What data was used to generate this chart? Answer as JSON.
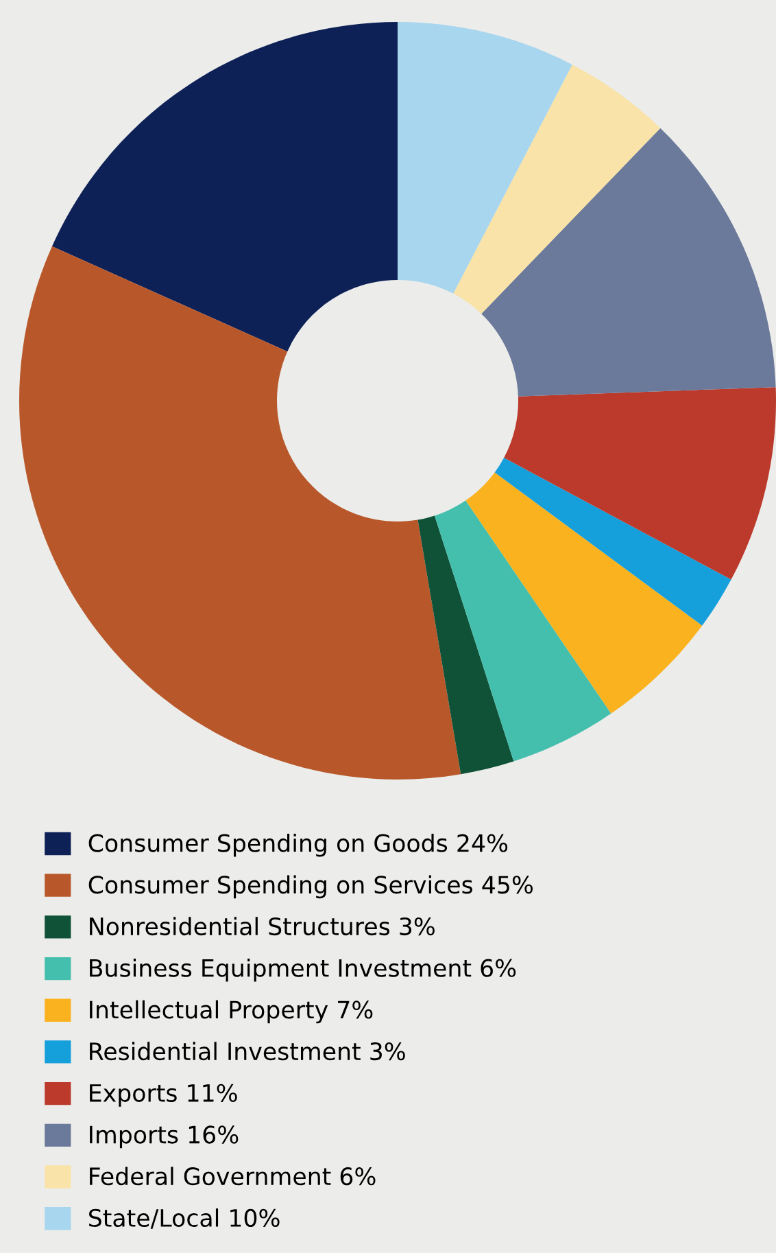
{
  "chart_data": {
    "type": "donut",
    "categories": [
      "Consumer Spending on Goods 24%",
      "Consumer Spending on Services 45%",
      "Nonresidential Structures 3%",
      "Business Equipment Investment 6%",
      "Intellectual Property 7%",
      "Residential Investment 3%",
      "Exports 11%",
      "Imports 16%",
      "Federal Government 6%",
      "State/Local 10%"
    ],
    "values": [
      24,
      45,
      3,
      6,
      7,
      3,
      11,
      16,
      6,
      10
    ],
    "colors": [
      "#0d2157",
      "#b8582a",
      "#0f5238",
      "#45bfad",
      "#fbb21f",
      "#159fdb",
      "#bb3a2c",
      "#6b7a9a",
      "#f9e3a8",
      "#a8d6ee"
    ],
    "legend": "bottom left"
  }
}
